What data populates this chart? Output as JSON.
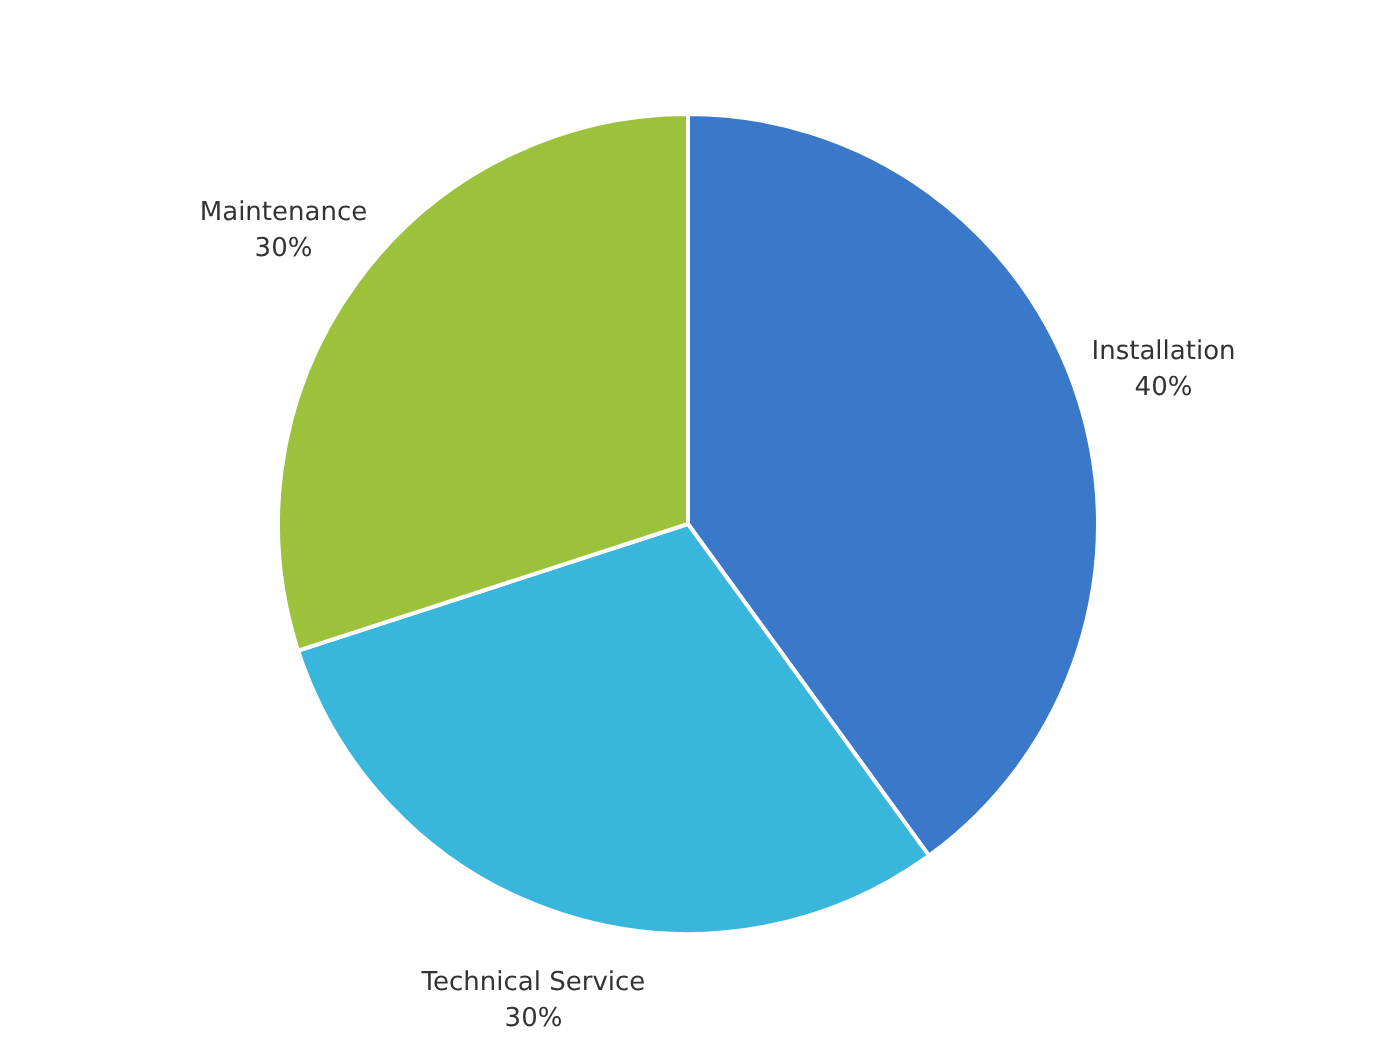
{
  "chart_data": {
    "type": "pie",
    "categories": [
      "Installation",
      "Technical Service",
      "Maintenance"
    ],
    "values": [
      40,
      30,
      30
    ],
    "colors": [
      "#3a78c9",
      "#38b6dc",
      "#9cc23c"
    ],
    "value_labels": [
      "40%",
      "30%",
      "30%"
    ],
    "legend": false
  }
}
